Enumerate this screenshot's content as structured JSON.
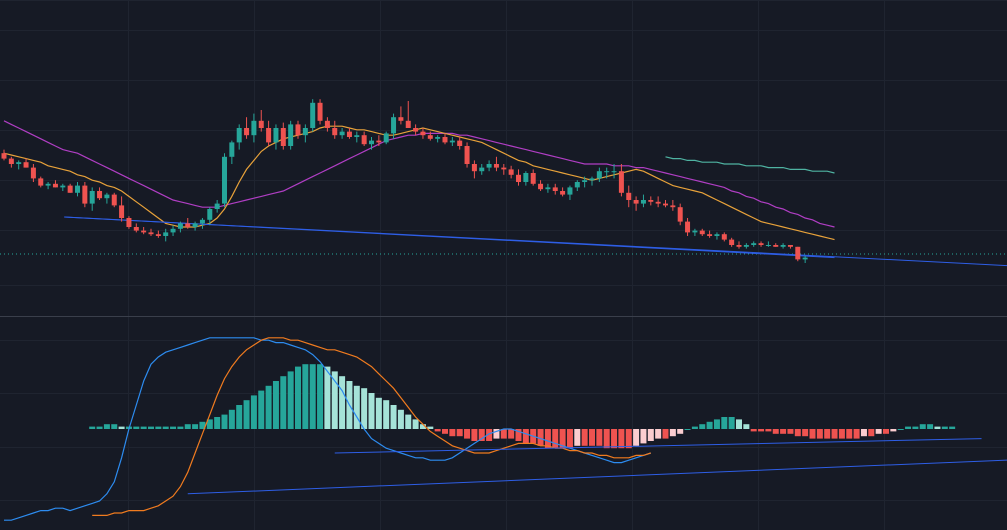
{
  "theme": {
    "background": "#161a25",
    "grid": "#1f2430",
    "divider": "#3a3f4b",
    "candle_up": "#26a69a",
    "candle_down": "#ef5350",
    "ma_fast": "#e8a23a",
    "ma_slow": "#b03ec4",
    "ma_long": "#4fb3a2",
    "trendline": "#2e5ee6",
    "price_line": "#26a69a",
    "macd_line": "#2d8cf0",
    "signal_line": "#f07b1f",
    "hist_pos_strong": "#26a69a",
    "hist_pos_weak": "#a5e3d8",
    "hist_neg_strong": "#ef5350",
    "hist_neg_weak": "#fbcdd0"
  },
  "chart_data": [
    {
      "type": "candlestick",
      "panel": "price",
      "ylim": [
        0,
        100
      ],
      "grid": true,
      "legend": "none",
      "candles": [
        {
          "o": 66,
          "h": 68,
          "l": 62,
          "c": 63
        },
        {
          "o": 63,
          "h": 64,
          "l": 58,
          "c": 60
        },
        {
          "o": 60,
          "h": 62,
          "l": 57,
          "c": 61
        },
        {
          "o": 61,
          "h": 63,
          "l": 58,
          "c": 58
        },
        {
          "o": 58,
          "h": 60,
          "l": 50,
          "c": 52
        },
        {
          "o": 52,
          "h": 53,
          "l": 47,
          "c": 48
        },
        {
          "o": 48,
          "h": 50,
          "l": 46,
          "c": 49
        },
        {
          "o": 49,
          "h": 51,
          "l": 47,
          "c": 47
        },
        {
          "o": 47,
          "h": 49,
          "l": 45,
          "c": 48
        },
        {
          "o": 48,
          "h": 49,
          "l": 44,
          "c": 44
        },
        {
          "o": 44,
          "h": 50,
          "l": 42,
          "c": 48
        },
        {
          "o": 48,
          "h": 50,
          "l": 36,
          "c": 38
        },
        {
          "o": 38,
          "h": 47,
          "l": 34,
          "c": 45
        },
        {
          "o": 45,
          "h": 47,
          "l": 40,
          "c": 41
        },
        {
          "o": 41,
          "h": 44,
          "l": 38,
          "c": 43
        },
        {
          "o": 43,
          "h": 44,
          "l": 36,
          "c": 37
        },
        {
          "o": 37,
          "h": 42,
          "l": 28,
          "c": 30
        },
        {
          "o": 30,
          "h": 31,
          "l": 24,
          "c": 25
        },
        {
          "o": 25,
          "h": 27,
          "l": 22,
          "c": 23
        },
        {
          "o": 23,
          "h": 25,
          "l": 21,
          "c": 22
        },
        {
          "o": 22,
          "h": 24,
          "l": 20,
          "c": 21
        },
        {
          "o": 21,
          "h": 23,
          "l": 19,
          "c": 20
        },
        {
          "o": 20,
          "h": 24,
          "l": 17,
          "c": 22
        },
        {
          "o": 22,
          "h": 26,
          "l": 20,
          "c": 24
        },
        {
          "o": 24,
          "h": 28,
          "l": 22,
          "c": 27
        },
        {
          "o": 27,
          "h": 30,
          "l": 24,
          "c": 25
        },
        {
          "o": 25,
          "h": 28,
          "l": 23,
          "c": 27
        },
        {
          "o": 27,
          "h": 30,
          "l": 24,
          "c": 29
        },
        {
          "o": 29,
          "h": 36,
          "l": 26,
          "c": 35
        },
        {
          "o": 35,
          "h": 40,
          "l": 33,
          "c": 38
        },
        {
          "o": 38,
          "h": 66,
          "l": 36,
          "c": 64
        },
        {
          "o": 64,
          "h": 73,
          "l": 60,
          "c": 72
        },
        {
          "o": 72,
          "h": 82,
          "l": 68,
          "c": 80
        },
        {
          "o": 80,
          "h": 86,
          "l": 74,
          "c": 76
        },
        {
          "o": 76,
          "h": 88,
          "l": 72,
          "c": 84
        },
        {
          "o": 84,
          "h": 90,
          "l": 78,
          "c": 80
        },
        {
          "o": 80,
          "h": 84,
          "l": 70,
          "c": 72
        },
        {
          "o": 72,
          "h": 82,
          "l": 68,
          "c": 80
        },
        {
          "o": 80,
          "h": 83,
          "l": 68,
          "c": 70
        },
        {
          "o": 70,
          "h": 84,
          "l": 68,
          "c": 82
        },
        {
          "o": 82,
          "h": 84,
          "l": 74,
          "c": 76
        },
        {
          "o": 76,
          "h": 82,
          "l": 72,
          "c": 80
        },
        {
          "o": 80,
          "h": 96,
          "l": 78,
          "c": 94
        },
        {
          "o": 94,
          "h": 96,
          "l": 82,
          "c": 84
        },
        {
          "o": 84,
          "h": 86,
          "l": 78,
          "c": 80
        },
        {
          "o": 80,
          "h": 84,
          "l": 74,
          "c": 76
        },
        {
          "o": 76,
          "h": 80,
          "l": 74,
          "c": 78
        },
        {
          "o": 78,
          "h": 80,
          "l": 74,
          "c": 75
        },
        {
          "o": 75,
          "h": 78,
          "l": 72,
          "c": 76
        },
        {
          "o": 76,
          "h": 78,
          "l": 70,
          "c": 71
        },
        {
          "o": 71,
          "h": 75,
          "l": 68,
          "c": 73
        },
        {
          "o": 73,
          "h": 76,
          "l": 70,
          "c": 72
        },
        {
          "o": 72,
          "h": 78,
          "l": 71,
          "c": 77
        },
        {
          "o": 77,
          "h": 88,
          "l": 74,
          "c": 86
        },
        {
          "o": 86,
          "h": 92,
          "l": 82,
          "c": 84
        },
        {
          "o": 84,
          "h": 95,
          "l": 80,
          "c": 80
        },
        {
          "o": 80,
          "h": 82,
          "l": 76,
          "c": 78
        },
        {
          "o": 78,
          "h": 80,
          "l": 74,
          "c": 76
        },
        {
          "o": 76,
          "h": 78,
          "l": 73,
          "c": 74
        },
        {
          "o": 74,
          "h": 76,
          "l": 72,
          "c": 75
        },
        {
          "o": 75,
          "h": 77,
          "l": 71,
          "c": 72
        },
        {
          "o": 72,
          "h": 75,
          "l": 70,
          "c": 73
        },
        {
          "o": 73,
          "h": 75,
          "l": 68,
          "c": 70
        },
        {
          "o": 70,
          "h": 72,
          "l": 58,
          "c": 60
        },
        {
          "o": 60,
          "h": 62,
          "l": 52,
          "c": 56
        },
        {
          "o": 56,
          "h": 60,
          "l": 54,
          "c": 58
        },
        {
          "o": 58,
          "h": 62,
          "l": 56,
          "c": 60
        },
        {
          "o": 60,
          "h": 64,
          "l": 56,
          "c": 58
        },
        {
          "o": 58,
          "h": 60,
          "l": 54,
          "c": 57
        },
        {
          "o": 57,
          "h": 59,
          "l": 52,
          "c": 54
        },
        {
          "o": 54,
          "h": 57,
          "l": 48,
          "c": 50
        },
        {
          "o": 50,
          "h": 56,
          "l": 48,
          "c": 55
        },
        {
          "o": 55,
          "h": 57,
          "l": 48,
          "c": 49
        },
        {
          "o": 49,
          "h": 51,
          "l": 45,
          "c": 46
        },
        {
          "o": 46,
          "h": 49,
          "l": 44,
          "c": 47
        },
        {
          "o": 47,
          "h": 49,
          "l": 43,
          "c": 45
        },
        {
          "o": 45,
          "h": 47,
          "l": 42,
          "c": 43
        },
        {
          "o": 43,
          "h": 48,
          "l": 40,
          "c": 47
        },
        {
          "o": 47,
          "h": 51,
          "l": 45,
          "c": 50
        },
        {
          "o": 50,
          "h": 53,
          "l": 47,
          "c": 51
        },
        {
          "o": 51,
          "h": 53,
          "l": 48,
          "c": 52
        },
        {
          "o": 52,
          "h": 58,
          "l": 50,
          "c": 56
        },
        {
          "o": 56,
          "h": 58,
          "l": 52,
          "c": 56
        },
        {
          "o": 56,
          "h": 60,
          "l": 52,
          "c": 56
        },
        {
          "o": 56,
          "h": 60,
          "l": 42,
          "c": 44
        },
        {
          "o": 44,
          "h": 48,
          "l": 36,
          "c": 40
        },
        {
          "o": 40,
          "h": 42,
          "l": 34,
          "c": 38
        },
        {
          "o": 38,
          "h": 43,
          "l": 36,
          "c": 40
        },
        {
          "o": 40,
          "h": 42,
          "l": 37,
          "c": 39
        },
        {
          "o": 39,
          "h": 42,
          "l": 36,
          "c": 38
        },
        {
          "o": 38,
          "h": 40,
          "l": 36,
          "c": 37
        },
        {
          "o": 37,
          "h": 40,
          "l": 34,
          "c": 36
        },
        {
          "o": 36,
          "h": 38,
          "l": 26,
          "c": 28
        },
        {
          "o": 28,
          "h": 30,
          "l": 20,
          "c": 22
        },
        {
          "o": 22,
          "h": 24,
          "l": 20,
          "c": 23
        },
        {
          "o": 23,
          "h": 24,
          "l": 20,
          "c": 21
        },
        {
          "o": 21,
          "h": 23,
          "l": 19,
          "c": 20
        },
        {
          "o": 20,
          "h": 22,
          "l": 18,
          "c": 21
        },
        {
          "o": 21,
          "h": 22,
          "l": 17,
          "c": 18
        },
        {
          "o": 18,
          "h": 19,
          "l": 14,
          "c": 15
        },
        {
          "o": 15,
          "h": 17,
          "l": 13,
          "c": 14
        },
        {
          "o": 14,
          "h": 16,
          "l": 13,
          "c": 15
        },
        {
          "o": 15,
          "h": 17,
          "l": 14,
          "c": 16
        },
        {
          "o": 16,
          "h": 17,
          "l": 14,
          "c": 15
        },
        {
          "o": 15,
          "h": 17,
          "l": 14,
          "c": 15
        },
        {
          "o": 15,
          "h": 16,
          "l": 14,
          "c": 14
        },
        {
          "o": 14,
          "h": 16,
          "l": 13,
          "c": 15
        },
        {
          "o": 15,
          "h": 15,
          "l": 13,
          "c": 14
        },
        {
          "o": 14,
          "h": 14,
          "l": 6,
          "c": 7
        },
        {
          "o": 7,
          "h": 9,
          "l": 5,
          "c": 8
        }
      ],
      "ma_fast": [
        66,
        65,
        64,
        63,
        62,
        61,
        59,
        58,
        57,
        56,
        54,
        53,
        51,
        50,
        48,
        47,
        45,
        42,
        39,
        36,
        33,
        30,
        27,
        26,
        25,
        25,
        25,
        26,
        27,
        30,
        35,
        42,
        50,
        57,
        62,
        67,
        70,
        72,
        74,
        75,
        76,
        77,
        78,
        80,
        81,
        81,
        81,
        80,
        79,
        79,
        78,
        77,
        76,
        76,
        77,
        78,
        79,
        80,
        79,
        78,
        77,
        76,
        75,
        74,
        73,
        72,
        70,
        68,
        66,
        64,
        62,
        61,
        59,
        58,
        57,
        56,
        55,
        54,
        53,
        52,
        51,
        52,
        53,
        54,
        55,
        56,
        57,
        56,
        54,
        52,
        50,
        48,
        47,
        46,
        45,
        44,
        42,
        40,
        38,
        36,
        34,
        32,
        30,
        28,
        27,
        26,
        25,
        24,
        23,
        22,
        21,
        20,
        19,
        18
      ],
      "ma_slow": [
        84,
        82,
        80,
        78,
        76,
        74,
        72,
        70,
        68,
        67,
        66,
        64,
        62,
        60,
        58,
        56,
        54,
        52,
        50,
        48,
        46,
        44,
        42,
        40,
        39,
        38,
        37,
        36,
        36,
        36,
        37,
        38,
        39,
        40,
        41,
        42,
        43,
        44,
        45,
        47,
        49,
        51,
        53,
        55,
        57,
        59,
        61,
        63,
        65,
        67,
        69,
        71,
        73,
        74,
        75,
        76,
        76,
        77,
        77,
        77,
        77,
        77,
        76,
        76,
        75,
        74,
        73,
        72,
        71,
        70,
        69,
        68,
        67,
        66,
        65,
        64,
        63,
        62,
        61,
        60,
        60,
        60,
        60,
        59,
        59,
        59,
        58,
        58,
        57,
        56,
        55,
        54,
        53,
        52,
        51,
        50,
        49,
        48,
        47,
        45,
        44,
        42,
        41,
        39,
        38,
        36,
        35,
        33,
        32,
        30,
        29,
        27,
        26,
        25
      ],
      "ma_long": [
        64,
        63,
        63,
        62,
        62,
        61,
        61,
        61,
        60,
        60,
        60,
        59,
        59,
        59,
        58,
        58,
        58,
        57,
        57,
        57,
        56,
        56,
        56,
        55
      ],
      "ma_long_start": 90,
      "trendlines": [
        {
          "from": [
            15,
            25
          ],
          "to": [
            113,
            8
          ]
        },
        {
          "from": [
            15,
            25
          ],
          "to": [
            139,
            3
          ]
        }
      ],
      "price_line": 10
    },
    {
      "type": "macd",
      "panel": "indicator",
      "ylim": [
        -40,
        40
      ],
      "grid": true,
      "legend": "none",
      "histogram": [
        1,
        1,
        2,
        2,
        1,
        1,
        1,
        1,
        1,
        1,
        1,
        1,
        1,
        2,
        2,
        3,
        4,
        5,
        6,
        8,
        10,
        12,
        14,
        16,
        18,
        20,
        22,
        24,
        26,
        27,
        27,
        27,
        26,
        24,
        22,
        20,
        18,
        17,
        15,
        13,
        12,
        10,
        8,
        6,
        4,
        2,
        1,
        -1,
        -2,
        -3,
        -3,
        -4,
        -5,
        -5,
        -5,
        -4,
        -4,
        -4,
        -5,
        -6,
        -6,
        -7,
        -8,
        -8,
        -8,
        -8,
        -7,
        -7,
        -7,
        -7,
        -8,
        -8,
        -8,
        -8,
        -7,
        -6,
        -5,
        -4,
        -4,
        -3,
        -2,
        0,
        1,
        2,
        3,
        4,
        5,
        5,
        4,
        2,
        -1,
        -1,
        -1,
        -2,
        -2,
        -2,
        -3,
        -3,
        -4,
        -4,
        -4,
        -4,
        -4,
        -4,
        -4,
        -3,
        -3,
        -2,
        -2,
        -1,
        0,
        1,
        1,
        2,
        2,
        1,
        1,
        1
      ],
      "histogram_start": 12,
      "macd": [
        -38,
        -38,
        -37,
        -36,
        -35,
        -34,
        -34,
        -33,
        -33,
        -34,
        -33,
        -32,
        -31,
        -30,
        -27,
        -22,
        -12,
        0,
        10,
        20,
        27,
        30,
        32,
        33,
        34,
        35,
        36,
        37,
        38,
        38,
        38,
        38,
        38,
        38,
        38,
        37,
        37,
        36,
        36,
        35,
        34,
        33,
        31,
        28,
        24,
        20,
        16,
        10,
        5,
        0,
        -4,
        -6,
        -8,
        -9,
        -10,
        -11,
        -12,
        -12,
        -13,
        -13,
        -13,
        -12,
        -10,
        -8,
        -6,
        -4,
        -2,
        -1,
        0,
        0,
        -1,
        -2,
        -3,
        -4,
        -5,
        -6,
        -7,
        -8,
        -9,
        -10,
        -11,
        -12,
        -13,
        -14,
        -14,
        -13,
        -12,
        -11,
        -10
      ],
      "signal": [
        -36,
        -36,
        -36,
        -35,
        -35,
        -34,
        -34,
        -34,
        -33,
        -32,
        -30,
        -28,
        -24,
        -18,
        -10,
        -2,
        6,
        14,
        21,
        26,
        30,
        33,
        35,
        37,
        38,
        38,
        38,
        37,
        37,
        36,
        35,
        34,
        33,
        33,
        32,
        31,
        30,
        28,
        26,
        23,
        20,
        17,
        13,
        9,
        5,
        2,
        -1,
        -3,
        -5,
        -7,
        -8,
        -9,
        -10,
        -10,
        -10,
        -9,
        -8,
        -7,
        -6,
        -6,
        -6,
        -7,
        -7,
        -8,
        -8,
        -9,
        -9,
        -10,
        -10,
        -11,
        -11,
        -12,
        -12,
        -12,
        -11,
        -11,
        -10
      ],
      "trendlines": [
        {
          "from": [
            45,
            -10
          ],
          "to": [
            133,
            -4
          ]
        },
        {
          "from": [
            25,
            -27
          ],
          "to": [
            152,
            -11
          ]
        }
      ]
    }
  ]
}
